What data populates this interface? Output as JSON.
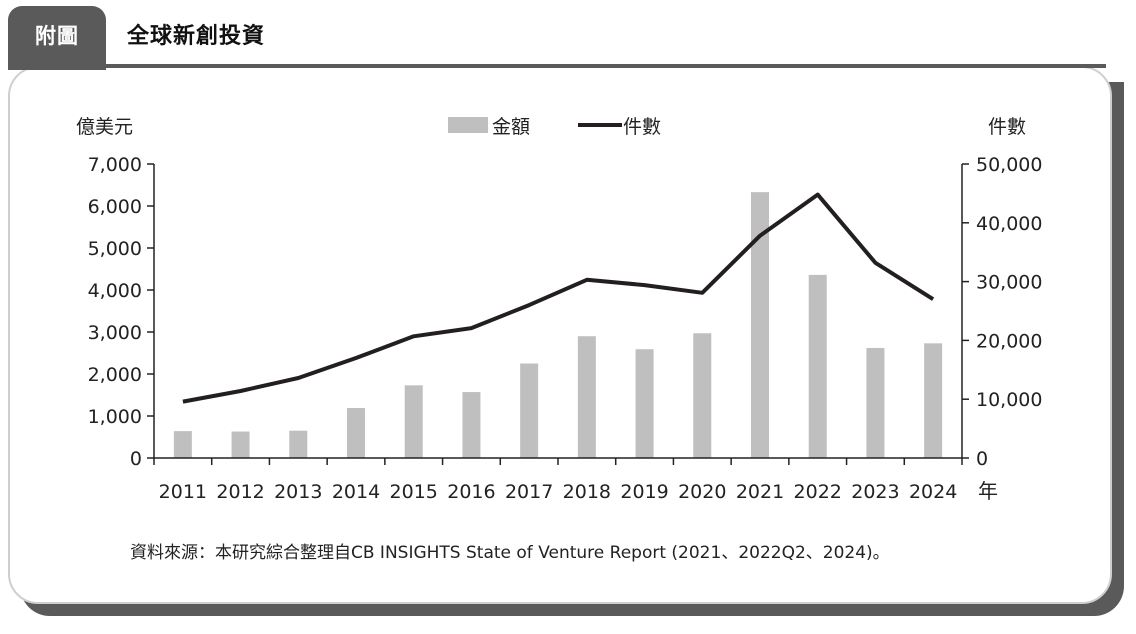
{
  "header": {
    "tab_label": "附圖",
    "title": "全球新創投資"
  },
  "colors": {
    "bar": "#bfbfbf",
    "line": "#231f20",
    "frame": "#5a5a5a"
  },
  "chart_data": {
    "type": "bar",
    "categories": [
      "2011",
      "2012",
      "2013",
      "2014",
      "2015",
      "2016",
      "2017",
      "2018",
      "2019",
      "2020",
      "2021",
      "2022",
      "2023",
      "2024"
    ],
    "series": [
      {
        "name": "金額",
        "type": "bar",
        "axis": "left",
        "values": [
          640,
          630,
          650,
          1190,
          1730,
          1570,
          2250,
          2900,
          2590,
          2970,
          6330,
          4360,
          2620,
          2730
        ]
      },
      {
        "name": "件數",
        "type": "line",
        "axis": "right",
        "values": [
          9600,
          11400,
          13600,
          17000,
          20700,
          22100,
          26000,
          30300,
          29400,
          28100,
          37800,
          44800,
          33200,
          27000
        ]
      }
    ],
    "left_axis": {
      "label": "億美元",
      "ylim": [
        0,
        7000
      ],
      "ticks": [
        "0",
        "1,000",
        "2,000",
        "3,000",
        "4,000",
        "5,000",
        "6,000",
        "7,000"
      ]
    },
    "right_axis": {
      "label": "件數",
      "ylim": [
        0,
        50000
      ],
      "ticks": [
        "0",
        "10,000",
        "20,000",
        "30,000",
        "40,000",
        "50,000"
      ]
    },
    "x_unit": "年",
    "legend": {
      "bar_label": "金額",
      "line_label": "件數",
      "position": "top-center"
    },
    "grid": false
  },
  "source": "資料來源：本研究綜合整理自CB INSIGHTS State of Venture Report (2021、2022Q2、2024)。"
}
